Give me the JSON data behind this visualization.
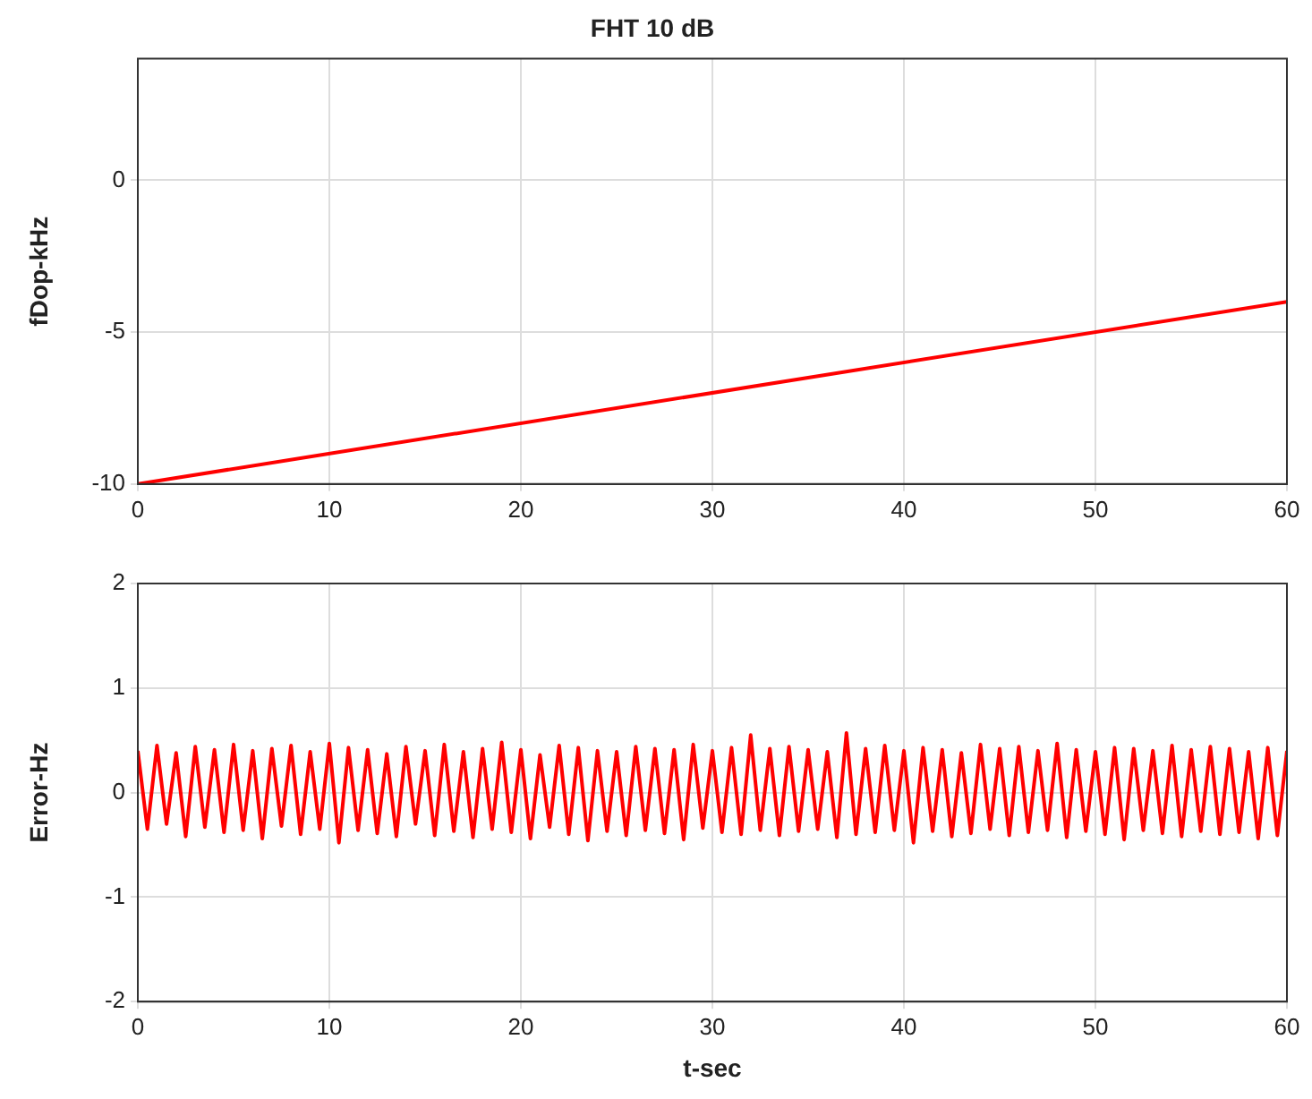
{
  "chart_data": [
    {
      "type": "line",
      "title": "FHT 10 dB",
      "ylabel": "fDop-kHz",
      "x": [
        0,
        60
      ],
      "xlim": [
        0,
        60
      ],
      "xticks": [
        0,
        10,
        20,
        30,
        40,
        50,
        60
      ],
      "ylim": [
        -10,
        4
      ],
      "yticks": [
        -10,
        -5,
        0
      ],
      "grid": true,
      "legend": false,
      "marker": "none",
      "line_style": "solid",
      "series": [
        {
          "color": "#ff0000",
          "values": [
            -10,
            -4
          ]
        }
      ]
    },
    {
      "type": "line",
      "xlabel": "t-sec",
      "ylabel": "Error-Hz",
      "xlim": [
        0,
        60
      ],
      "xticks": [
        0,
        10,
        20,
        30,
        40,
        50,
        60
      ],
      "ylim": [
        -2,
        2
      ],
      "yticks": [
        -2,
        -1,
        0,
        1,
        2
      ],
      "grid": true,
      "legend": false,
      "marker": "none",
      "line_style": "solid",
      "x": [
        0,
        0.5,
        1,
        1.5,
        2,
        2.5,
        3,
        3.5,
        4,
        4.5,
        5,
        5.5,
        6,
        6.5,
        7,
        7.5,
        8,
        8.5,
        9,
        9.5,
        10,
        10.5,
        11,
        11.5,
        12,
        12.5,
        13,
        13.5,
        14,
        14.5,
        15,
        15.5,
        16,
        16.5,
        17,
        17.5,
        18,
        18.5,
        19,
        19.5,
        20,
        20.5,
        21,
        21.5,
        22,
        22.5,
        23,
        23.5,
        24,
        24.5,
        25,
        25.5,
        26,
        26.5,
        27,
        27.5,
        28,
        28.5,
        29,
        29.5,
        30,
        30.5,
        31,
        31.5,
        32,
        32.5,
        33,
        33.5,
        34,
        34.5,
        35,
        35.5,
        36,
        36.5,
        37,
        37.5,
        38,
        38.5,
        39,
        39.5,
        40,
        40.5,
        41,
        41.5,
        42,
        42.5,
        43,
        43.5,
        44,
        44.5,
        45,
        45.5,
        46,
        46.5,
        47,
        47.5,
        48,
        48.5,
        49,
        49.5,
        50,
        50.5,
        51,
        51.5,
        52,
        52.5,
        53,
        53.5,
        54,
        54.5,
        55,
        55.5,
        56,
        56.5,
        57,
        57.5,
        58,
        58.5,
        59,
        59.5,
        60
      ],
      "series": [
        {
          "color": "#ff0000",
          "values": [
            0.4,
            -0.35,
            0.45,
            -0.3,
            0.38,
            -0.42,
            0.44,
            -0.33,
            0.41,
            -0.38,
            0.46,
            -0.36,
            0.4,
            -0.44,
            0.42,
            -0.32,
            0.45,
            -0.4,
            0.39,
            -0.35,
            0.47,
            -0.48,
            0.43,
            -0.36,
            0.41,
            -0.39,
            0.37,
            -0.42,
            0.44,
            -0.3,
            0.4,
            -0.41,
            0.46,
            -0.37,
            0.39,
            -0.43,
            0.42,
            -0.35,
            0.48,
            -0.38,
            0.41,
            -0.44,
            0.36,
            -0.33,
            0.45,
            -0.4,
            0.43,
            -0.46,
            0.4,
            -0.37,
            0.39,
            -0.41,
            0.44,
            -0.36,
            0.42,
            -0.39,
            0.41,
            -0.45,
            0.46,
            -0.34,
            0.4,
            -0.38,
            0.43,
            -0.4,
            0.55,
            -0.36,
            0.42,
            -0.41,
            0.44,
            -0.37,
            0.41,
            -0.35,
            0.39,
            -0.43,
            0.57,
            -0.4,
            0.42,
            -0.38,
            0.45,
            -0.36,
            0.4,
            -0.48,
            0.43,
            -0.37,
            0.41,
            -0.42,
            0.38,
            -0.39,
            0.46,
            -0.35,
            0.42,
            -0.41,
            0.44,
            -0.38,
            0.4,
            -0.36,
            0.47,
            -0.43,
            0.41,
            -0.37,
            0.39,
            -0.4,
            0.43,
            -0.45,
            0.42,
            -0.36,
            0.4,
            -0.39,
            0.45,
            -0.42,
            0.41,
            -0.37,
            0.44,
            -0.4,
            0.42,
            -0.38,
            0.39,
            -0.44,
            0.43,
            -0.41,
            0.4
          ]
        }
      ]
    }
  ]
}
